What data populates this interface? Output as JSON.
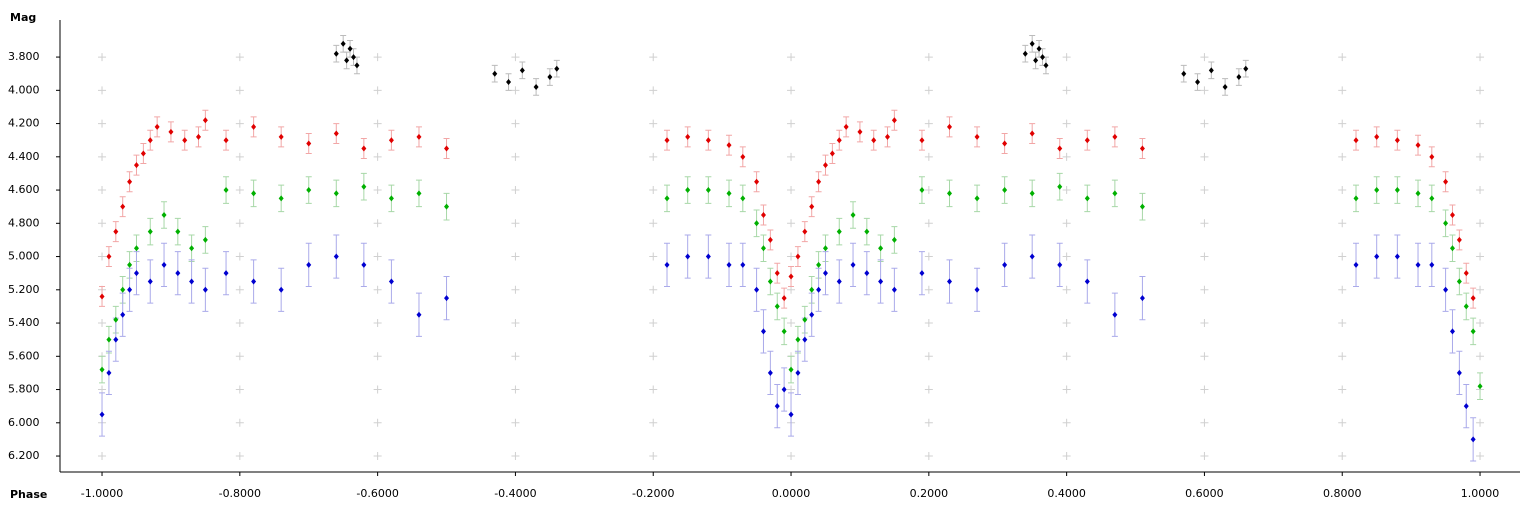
{
  "chart_data": {
    "type": "scatter",
    "y_label": "Mag",
    "x_label": "Phase",
    "xlim": [
      -1.061,
      1.058
    ],
    "ylim": [
      3.577,
      6.296
    ],
    "invert_y": true,
    "grid": true,
    "xticks": [
      {
        "value": -1,
        "label": "-1.0000"
      },
      {
        "value": -0.8,
        "label": "-0.8000"
      },
      {
        "value": -0.6,
        "label": "-0.6000"
      },
      {
        "value": -0.4,
        "label": "-0.4000"
      },
      {
        "value": -0.2,
        "label": "-0.2000"
      },
      {
        "value": 0,
        "label": "0.0000"
      },
      {
        "value": 0.2,
        "label": "0.2000"
      },
      {
        "value": 0.4,
        "label": "0.4000"
      },
      {
        "value": 0.6,
        "label": "0.6000"
      },
      {
        "value": 0.8,
        "label": "0.8000"
      },
      {
        "value": 1,
        "label": "1.0000"
      }
    ],
    "yticks": [
      {
        "value": 3.8,
        "label": "3.800"
      },
      {
        "value": 4,
        "label": "4.000"
      },
      {
        "value": 4.2,
        "label": "4.200"
      },
      {
        "value": 4.4,
        "label": "4.400"
      },
      {
        "value": 4.6,
        "label": "4.600"
      },
      {
        "value": 4.8,
        "label": "4.800"
      },
      {
        "value": 5,
        "label": "5.000"
      },
      {
        "value": 5.2,
        "label": "5.200"
      },
      {
        "value": 5.4,
        "label": "5.400"
      },
      {
        "value": 5.6,
        "label": "5.600"
      },
      {
        "value": 5.8,
        "label": "5.800"
      },
      {
        "value": 6,
        "label": "6.000"
      },
      {
        "value": 6.2,
        "label": "6.200"
      }
    ],
    "series": [
      {
        "color": "#e00000",
        "error_color": "#f2a6a6",
        "error": 0.06,
        "x": [
          -1.0,
          -0.99,
          -0.98,
          -0.97,
          -0.96,
          -0.95,
          -0.94,
          -0.93,
          -0.92,
          -0.9,
          -0.88,
          -0.86,
          -0.85,
          -0.82,
          -0.78,
          -0.74,
          -0.7,
          -0.66,
          -0.62,
          -0.58,
          -0.54,
          -0.5,
          -0.18,
          -0.15,
          -0.12,
          -0.09,
          -0.07,
          -0.05,
          -0.04,
          -0.03,
          -0.02,
          -0.01,
          0.0,
          0.01,
          0.02,
          0.03,
          0.04,
          0.05,
          0.06,
          0.07,
          0.08,
          0.1,
          0.12,
          0.14,
          0.15,
          0.19,
          0.23,
          0.27,
          0.31,
          0.35,
          0.39,
          0.43,
          0.47,
          0.51,
          0.82,
          0.85,
          0.88,
          0.91,
          0.93,
          0.95,
          0.96,
          0.97,
          0.98,
          0.99
        ],
        "values": [
          5.24,
          5.0,
          4.85,
          4.7,
          4.55,
          4.45,
          4.38,
          4.3,
          4.22,
          4.25,
          4.3,
          4.28,
          4.18,
          4.3,
          4.22,
          4.28,
          4.32,
          4.26,
          4.35,
          4.3,
          4.28,
          4.35,
          4.3,
          4.28,
          4.3,
          4.33,
          4.4,
          4.55,
          4.75,
          4.9,
          5.1,
          5.25,
          5.12,
          5.0,
          4.85,
          4.7,
          4.55,
          4.45,
          4.38,
          4.3,
          4.22,
          4.25,
          4.3,
          4.28,
          4.18,
          4.3,
          4.22,
          4.28,
          4.32,
          4.26,
          4.35,
          4.3,
          4.28,
          4.35,
          4.3,
          4.28,
          4.3,
          4.33,
          4.4,
          4.55,
          4.75,
          4.9,
          5.1,
          5.25
        ]
      },
      {
        "color": "#00b000",
        "error_color": "#a8d8a8",
        "error": 0.08,
        "x": [
          -1.0,
          -0.99,
          -0.98,
          -0.97,
          -0.96,
          -0.95,
          -0.93,
          -0.91,
          -0.89,
          -0.87,
          -0.85,
          -0.82,
          -0.78,
          -0.74,
          -0.7,
          -0.66,
          -0.62,
          -0.58,
          -0.54,
          -0.5,
          -0.18,
          -0.15,
          -0.12,
          -0.09,
          -0.07,
          -0.05,
          -0.04,
          -0.03,
          -0.02,
          -0.01,
          0.0,
          0.01,
          0.02,
          0.03,
          0.04,
          0.05,
          0.07,
          0.09,
          0.11,
          0.13,
          0.15,
          0.19,
          0.23,
          0.27,
          0.31,
          0.35,
          0.39,
          0.43,
          0.47,
          0.51,
          0.82,
          0.85,
          0.88,
          0.91,
          0.93,
          0.95,
          0.96,
          0.97,
          0.98,
          0.99,
          1.0
        ],
        "values": [
          5.68,
          5.5,
          5.38,
          5.2,
          5.05,
          4.95,
          4.85,
          4.75,
          4.85,
          4.95,
          4.9,
          4.6,
          4.62,
          4.65,
          4.6,
          4.62,
          4.58,
          4.65,
          4.62,
          4.7,
          4.65,
          4.6,
          4.6,
          4.62,
          4.65,
          4.8,
          4.95,
          5.15,
          5.3,
          5.45,
          5.68,
          5.5,
          5.38,
          5.2,
          5.05,
          4.95,
          4.85,
          4.75,
          4.85,
          4.95,
          4.9,
          4.6,
          4.62,
          4.65,
          4.6,
          4.62,
          4.58,
          4.65,
          4.62,
          4.7,
          4.65,
          4.6,
          4.6,
          4.62,
          4.65,
          4.8,
          4.95,
          5.15,
          5.3,
          5.45,
          5.78
        ]
      },
      {
        "color": "#0000d0",
        "error_color": "#aaaaea",
        "error": 0.13,
        "x": [
          -1.0,
          -0.99,
          -0.98,
          -0.97,
          -0.96,
          -0.95,
          -0.93,
          -0.91,
          -0.89,
          -0.87,
          -0.85,
          -0.82,
          -0.78,
          -0.74,
          -0.7,
          -0.66,
          -0.62,
          -0.58,
          -0.54,
          -0.5,
          -0.18,
          -0.15,
          -0.12,
          -0.09,
          -0.07,
          -0.05,
          -0.04,
          -0.03,
          -0.02,
          -0.01,
          0.0,
          0.01,
          0.02,
          0.03,
          0.04,
          0.05,
          0.07,
          0.09,
          0.11,
          0.13,
          0.15,
          0.19,
          0.23,
          0.27,
          0.31,
          0.35,
          0.39,
          0.43,
          0.47,
          0.51,
          0.82,
          0.85,
          0.88,
          0.91,
          0.93,
          0.95,
          0.96,
          0.97,
          0.98,
          0.99
        ],
        "values": [
          5.95,
          5.7,
          5.5,
          5.35,
          5.2,
          5.1,
          5.15,
          5.05,
          5.1,
          5.15,
          5.2,
          5.1,
          5.15,
          5.2,
          5.05,
          5.0,
          5.05,
          5.15,
          5.35,
          5.25,
          5.05,
          5.0,
          5.0,
          5.05,
          5.05,
          5.2,
          5.45,
          5.7,
          5.9,
          5.8,
          5.95,
          5.7,
          5.5,
          5.35,
          5.2,
          5.1,
          5.15,
          5.05,
          5.1,
          5.15,
          5.2,
          5.1,
          5.15,
          5.2,
          5.05,
          5.0,
          5.05,
          5.15,
          5.35,
          5.25,
          5.05,
          5.0,
          5.0,
          5.05,
          5.05,
          5.2,
          5.45,
          5.7,
          5.9,
          6.1
        ]
      },
      {
        "color": "#000000",
        "error_color": "#bbbbbb",
        "error": 0.05,
        "x": [
          -0.66,
          -0.65,
          -0.645,
          -0.64,
          -0.635,
          -0.63,
          -0.43,
          -0.41,
          -0.39,
          -0.37,
          -0.35,
          -0.34,
          0.34,
          0.35,
          0.355,
          0.36,
          0.365,
          0.37,
          0.57,
          0.59,
          0.61,
          0.63,
          0.65,
          0.66
        ],
        "values": [
          3.78,
          3.72,
          3.82,
          3.75,
          3.8,
          3.85,
          3.9,
          3.95,
          3.88,
          3.98,
          3.92,
          3.87,
          3.78,
          3.72,
          3.82,
          3.75,
          3.8,
          3.85,
          3.9,
          3.95,
          3.88,
          3.98,
          3.92,
          3.87
        ]
      }
    ]
  }
}
